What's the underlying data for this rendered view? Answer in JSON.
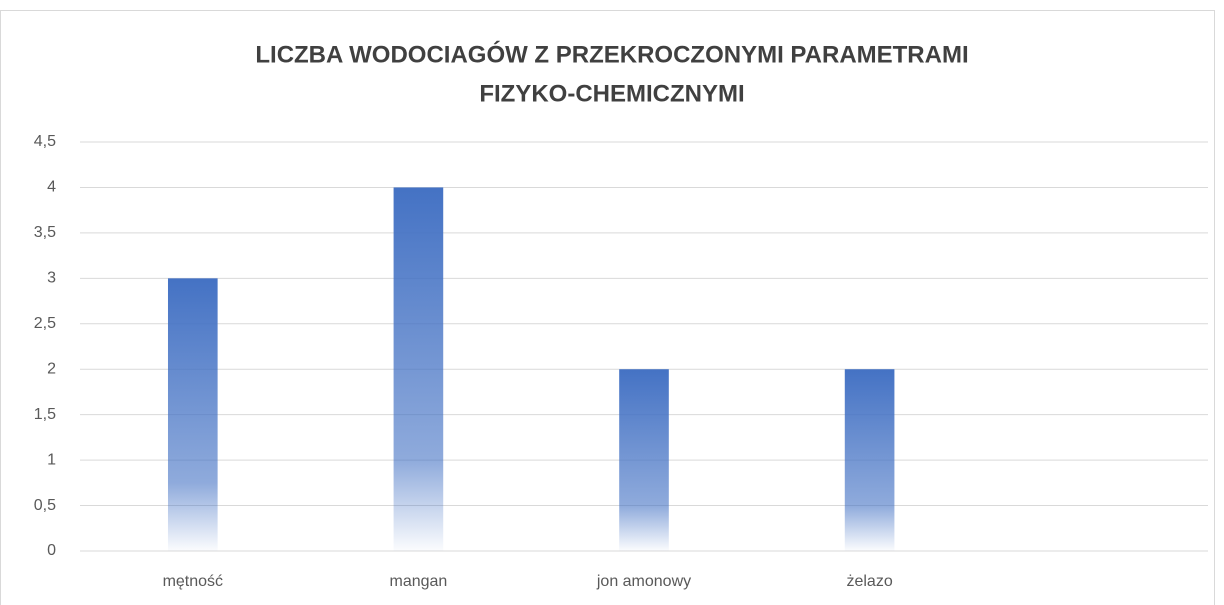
{
  "chart_data": {
    "type": "bar",
    "title": [
      "LICZBA WODOCIAGÓW Z PRZEKROCZONYMI PARAMETRAMI",
      "FIZYKO-CHEMICZNYMI"
    ],
    "categories": [
      "mętność",
      "mangan",
      "jon amonowy",
      "żelazo",
      null
    ],
    "values": [
      3,
      4,
      2,
      2,
      null
    ],
    "color": "#4472c4",
    "ylim": [
      0,
      4.5
    ],
    "yticks": [
      0,
      {
        "value": 0.5,
        "label": "0,5"
      },
      1,
      {
        "value": 1.5,
        "label": "1,5"
      },
      2,
      {
        "value": 2.5,
        "label": "2,5"
      },
      3,
      {
        "value": 3.5,
        "label": "3,5"
      },
      4,
      {
        "value": 4.5,
        "label": "4,5"
      }
    ],
    "grid": true
  }
}
